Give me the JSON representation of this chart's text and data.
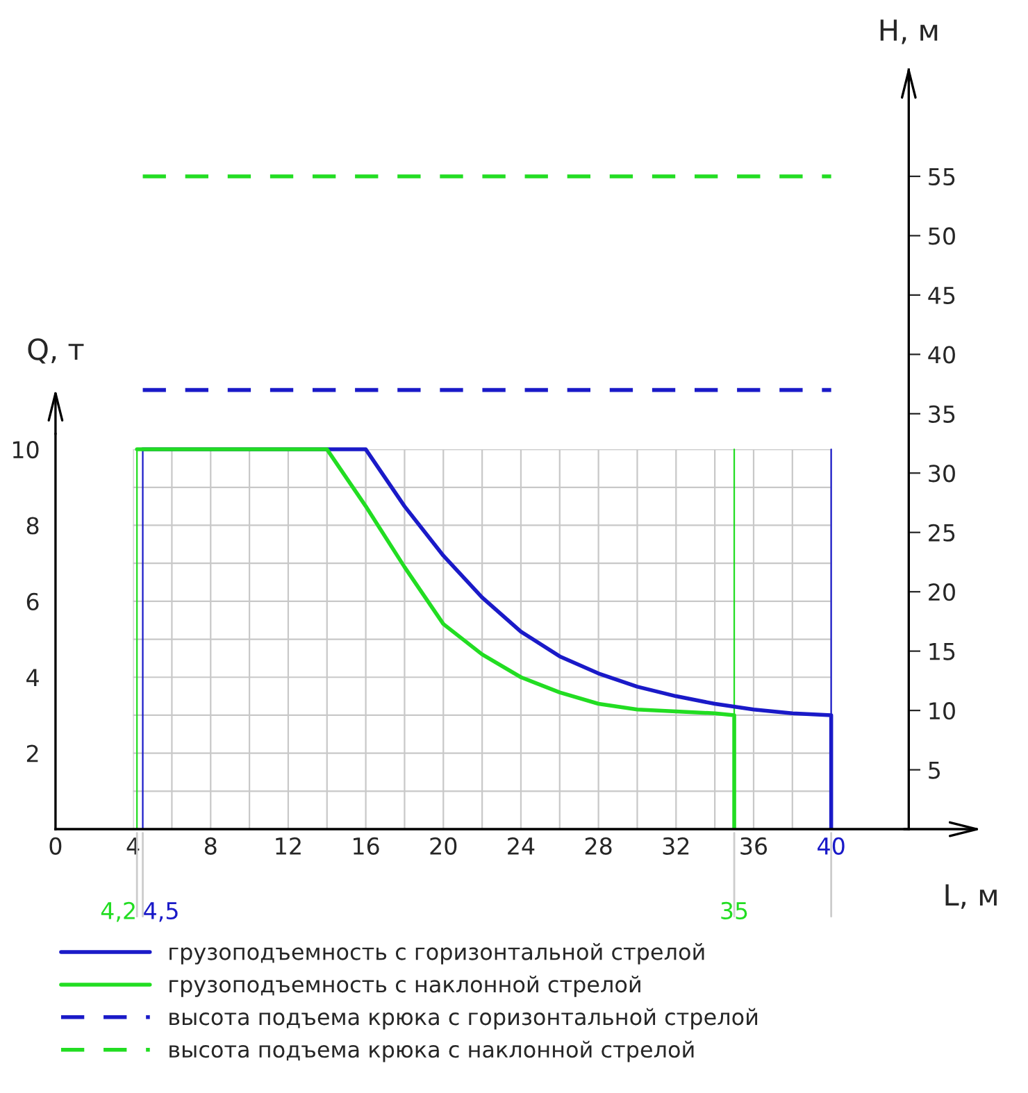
{
  "chart_data": {
    "type": "line",
    "xlabel": "L, м",
    "ylabel": "Q, т",
    "y2label": "H, м",
    "xlim": [
      0,
      44
    ],
    "xticks": [
      0,
      4,
      {
        "value": 6,
        "label": null
      },
      8,
      {
        "value": 10,
        "label": null
      },
      12,
      {
        "value": 14,
        "label": null
      },
      16,
      {
        "value": 18,
        "label": null
      },
      20,
      {
        "value": 22,
        "label": null
      },
      24,
      {
        "value": 26,
        "label": null
      },
      28,
      {
        "value": 30,
        "label": null
      },
      32,
      {
        "value": 34,
        "label": null
      },
      36,
      {
        "value": 38,
        "label": null
      },
      40
    ],
    "ylim": [
      0,
      20
    ],
    "yticks": [
      {
        "value": 1,
        "label": null
      },
      2,
      {
        "value": 3,
        "label": null
      },
      4,
      {
        "value": 5,
        "label": null
      },
      6,
      {
        "value": 7,
        "label": null
      },
      8,
      {
        "value": 9,
        "label": null
      },
      10
    ],
    "y2lim": [
      0,
      64
    ],
    "y2ticks": [
      5,
      10,
      15,
      20,
      25,
      30,
      35,
      40,
      45,
      50,
      55
    ],
    "grid": true,
    "legend": "bottom",
    "ref_lines": [
      {
        "axis": "x",
        "value": 4.2,
        "label": "4,2",
        "color": "#22dd22"
      },
      {
        "axis": "x",
        "value": 4.5,
        "label": "4,5",
        "color": "#1a1ac8"
      },
      {
        "axis": "x",
        "value": 35,
        "label": "35",
        "color": "#22dd22"
      },
      {
        "axis": "x",
        "value": 40,
        "label": null,
        "color": "#1a1ac8"
      }
    ],
    "series": [
      {
        "name": "грузоподъемность с горизонтальной стрелой",
        "color": "#1a1ac8",
        "line_style": "solid",
        "x": [
          4.5,
          16,
          18,
          20,
          22,
          24,
          26,
          28,
          30,
          32,
          34,
          36,
          38,
          40,
          40
        ],
        "values": [
          10,
          10,
          8.5,
          7.2,
          6.1,
          5.2,
          4.55,
          4.1,
          3.75,
          3.5,
          3.3,
          3.15,
          3.05,
          3,
          0
        ]
      },
      {
        "name": "грузоподъемность с наклонной стрелой",
        "color": "#22dd22",
        "line_style": "solid",
        "x": [
          4.2,
          14,
          16,
          18,
          20,
          22,
          24,
          26,
          28,
          30,
          32,
          34,
          35,
          35
        ],
        "values": [
          10,
          10,
          8.5,
          6.9,
          5.4,
          4.6,
          4.0,
          3.6,
          3.3,
          3.15,
          3.1,
          3.05,
          3,
          0
        ]
      },
      {
        "name": "высота подъема крюка с горизонтальной стрелой",
        "color": "#1a1ac8",
        "line_style": "dashed",
        "axis": "y2",
        "x": [
          4.5,
          40
        ],
        "values": [
          37,
          37
        ]
      },
      {
        "name": "высота подъема крюка с наклонной стрелой",
        "color": "#22dd22",
        "line_style": "dashed",
        "axis": "y2",
        "x": [
          4.5,
          40
        ],
        "values": [
          55,
          55
        ]
      }
    ]
  }
}
